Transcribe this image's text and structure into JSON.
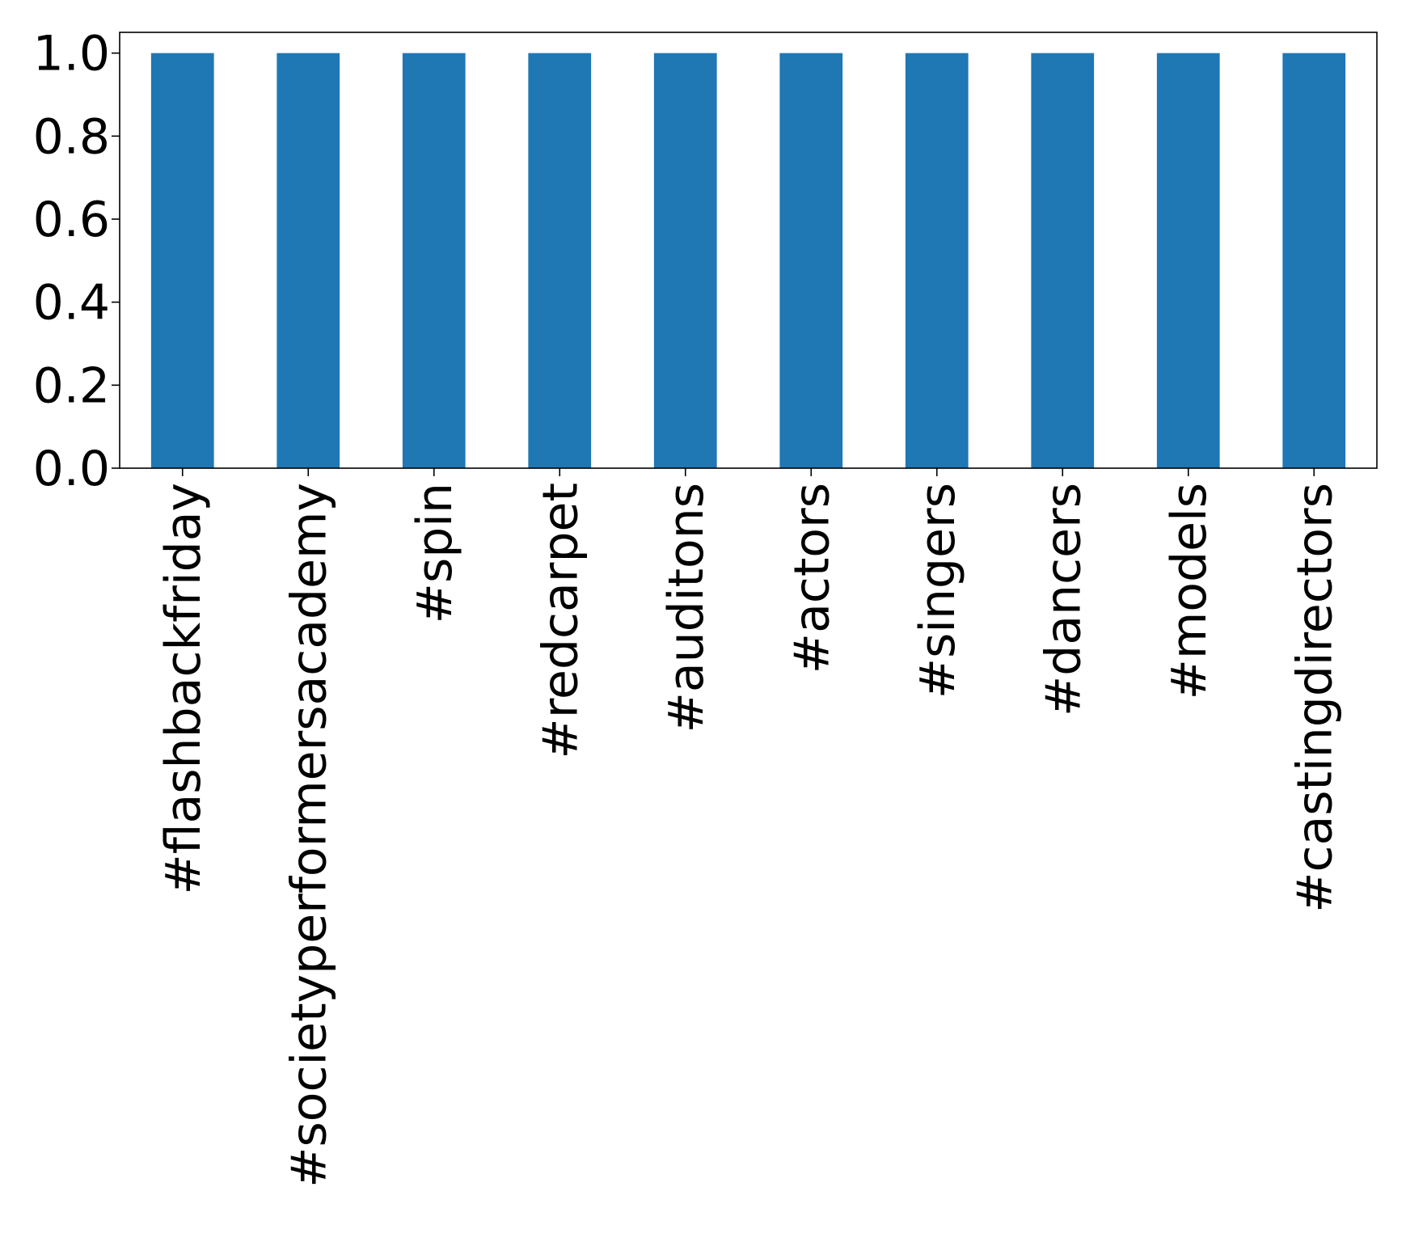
{
  "chart_data": {
    "type": "bar",
    "title": "",
    "xlabel": "",
    "ylabel": "",
    "categories": [
      "#flashbackfriday",
      "#societyperformersacademy",
      "#spin",
      "#redcarpet",
      "#auditons",
      "#actors",
      "#singers",
      "#dancers",
      "#models",
      "#castingdirectors"
    ],
    "values": [
      1.0,
      1.0,
      1.0,
      1.0,
      1.0,
      1.0,
      1.0,
      1.0,
      1.0,
      1.0
    ],
    "ylim": [
      0.0,
      1.05
    ],
    "yticks": [
      "0.0",
      "0.2",
      "0.4",
      "0.6",
      "0.8",
      "1.0"
    ],
    "bar_color": "#1f77b4",
    "grid": false,
    "legend": "none",
    "xtick_rotation": "vertical"
  }
}
